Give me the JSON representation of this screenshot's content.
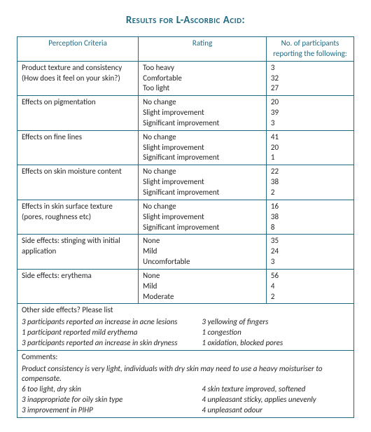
{
  "title": "Results for L-Ascorbic Acid:",
  "headers": {
    "criteria": "Perception Criteria",
    "rating": "Rating",
    "count": "No. of participants reporting the following:"
  },
  "rows": [
    {
      "criteria": "Product texture and consistency\n(How does it feel on your skin?)",
      "ratings": [
        "Too heavy",
        "Comfortable",
        "Too light"
      ],
      "counts": [
        3,
        32,
        27
      ]
    },
    {
      "criteria": "Effects on pigmentation",
      "ratings": [
        "No change",
        "Slight improvement",
        "Significant improvement"
      ],
      "counts": [
        20,
        39,
        3
      ]
    },
    {
      "criteria": "Effects on fine lines",
      "ratings": [
        "No change",
        "Slight improvement",
        "Significant improvement"
      ],
      "counts": [
        41,
        20,
        1
      ]
    },
    {
      "criteria": "Effects on skin moisture content",
      "ratings": [
        "No change",
        "Slight improvement",
        "Significant improvement"
      ],
      "counts": [
        22,
        38,
        2
      ]
    },
    {
      "criteria": "Effects in skin surface texture\n(pores, roughness etc)",
      "ratings": [
        "No change",
        "Slight improvement",
        "Significant improvement"
      ],
      "counts": [
        16,
        38,
        8
      ]
    },
    {
      "criteria": "Side effects: stinging with initial application",
      "ratings": [
        "None",
        "Mild",
        "Uncomfortable"
      ],
      "counts": [
        35,
        24,
        3
      ]
    },
    {
      "criteria": "Side effects: erythema",
      "ratings": [
        "None",
        "Mild",
        "Moderate"
      ],
      "counts": [
        56,
        4,
        2
      ]
    }
  ],
  "otherSideEffects": {
    "lead": "Other side effects? Please list",
    "left": [
      "3 participants reported an increase in acne lesions",
      "1 participant reported mild erythema",
      "3 participants reported an increase in skin dryness"
    ],
    "right": [
      "3 yellowing of fingers",
      "1 congestion",
      "1 oxidation, blocked pores"
    ]
  },
  "comments": {
    "lead": "Comments:",
    "intro": "Product consistency is very light, individuals with dry skin may need to use a heavy moisturiser to compensate.",
    "left": [
      "6 too light, dry skin",
      "3 inappropriate for oily skin type",
      "3 improvement in PIHP"
    ],
    "right": [
      "4 skin texture improved, softened",
      " 4 unpleasant sticky, applies unevenly",
      "4 unpleasant odour"
    ]
  }
}
